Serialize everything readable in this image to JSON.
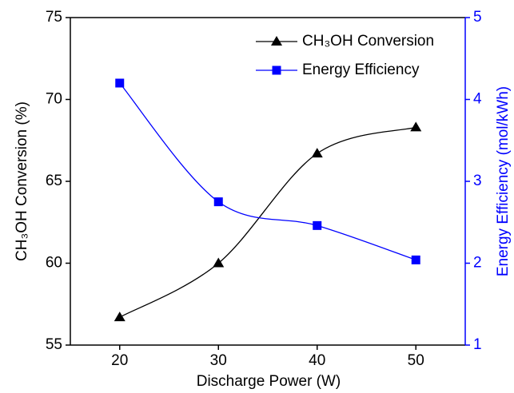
{
  "chart_data": {
    "type": "line",
    "x_label": "Discharge Power (W)",
    "y_label": "CH₃OH Conversion (%)",
    "y2_label": "Energy Efficiency (mol/kWh)",
    "x": [
      20,
      30,
      40,
      50
    ],
    "xlim": [
      15,
      55
    ],
    "xticks": [
      20,
      30,
      40,
      50
    ],
    "ylim": [
      55,
      75
    ],
    "yticks": [
      55,
      60,
      65,
      70,
      75
    ],
    "y2lim": [
      1,
      5
    ],
    "y2ticks": [
      1,
      2,
      3,
      4,
      5
    ],
    "legend": "upper right",
    "series": [
      {
        "name": "CH₃OH Conversion",
        "color": "#000000",
        "marker": "triangle",
        "values": [
          56.7,
          60.0,
          66.7,
          68.3
        ]
      },
      {
        "name": "Energy Efficiency",
        "color": "#0000ff",
        "marker": "square",
        "axis": "y2",
        "values": [
          4.2,
          2.75,
          2.46,
          2.04
        ]
      }
    ]
  }
}
